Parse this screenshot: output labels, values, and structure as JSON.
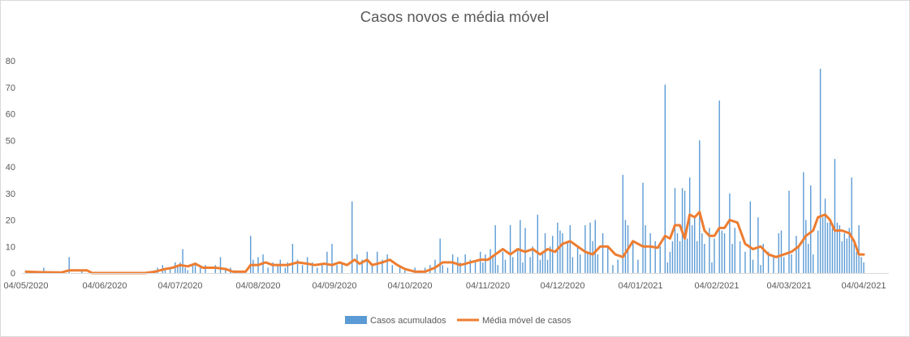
{
  "chart_data": {
    "type": "bar+line",
    "title": "Casos novos e média móvel",
    "xlabel": "",
    "ylabel": "",
    "ylim": [
      0,
      80
    ],
    "yticks": [
      0,
      10,
      20,
      30,
      40,
      50,
      60,
      70,
      80
    ],
    "grid": false,
    "legend_position": "bottom",
    "x_start_date": "2020-05-04",
    "x_end_date": "2021-04-04",
    "x_tick_labels": [
      "04/05/2020",
      "04/06/2020",
      "04/07/2020",
      "04/08/2020",
      "04/09/2020",
      "04/10/2020",
      "04/11/2020",
      "04/12/2020",
      "04/01/2021",
      "04/02/2021",
      "04/03/2021",
      "04/04/2021"
    ],
    "series": [
      {
        "name": "Casos acumulados",
        "kind": "bar",
        "color": "#5b9bd5",
        "values": [
          1,
          0,
          0,
          0,
          0,
          0,
          0,
          0,
          0,
          0,
          0,
          0,
          0,
          0,
          0,
          0,
          0,
          0,
          0,
          0,
          0,
          0,
          2,
          0,
          0,
          0,
          0,
          0,
          0,
          0,
          0,
          0,
          0,
          0,
          0,
          0,
          0,
          0,
          0,
          0,
          0,
          0,
          0,
          0,
          0,
          0,
          0,
          0,
          0,
          0,
          0,
          0,
          0,
          0,
          0,
          0,
          0,
          0,
          0,
          0,
          0,
          0,
          0,
          0,
          0,
          0,
          0,
          0,
          0,
          0,
          0,
          0,
          0,
          0,
          0,
          0,
          0,
          0,
          0,
          0,
          0,
          0,
          0,
          0,
          0,
          0,
          0,
          0,
          0,
          0,
          0,
          0,
          0,
          0,
          0,
          0,
          0,
          0,
          0,
          0,
          0,
          0,
          0,
          0,
          0,
          0,
          0,
          0,
          0,
          0,
          0,
          0,
          0,
          0,
          0,
          0,
          0,
          0,
          0,
          0,
          0,
          0,
          0,
          0,
          0,
          0,
          0,
          0,
          0,
          0,
          0,
          0,
          0,
          0,
          0,
          0,
          0,
          0,
          0,
          0,
          0,
          0,
          0,
          0,
          0,
          0,
          0,
          0,
          0,
          0,
          0,
          0,
          0,
          0,
          0,
          0,
          0,
          0,
          0,
          0,
          0,
          0,
          0,
          0,
          0,
          0,
          0,
          0,
          0,
          0,
          0,
          0,
          0,
          0,
          0,
          0,
          0,
          0,
          0,
          0,
          0,
          0,
          0,
          0,
          0,
          0,
          0,
          0,
          0,
          0,
          0,
          0,
          0,
          0,
          0,
          0,
          0,
          0,
          0,
          0,
          0,
          0,
          0,
          0,
          0,
          0,
          0,
          0,
          0,
          0,
          0,
          0,
          0,
          0,
          0,
          0,
          0,
          0,
          0,
          0,
          0,
          0,
          0,
          0,
          0,
          0,
          0,
          0,
          0,
          0,
          0,
          0,
          0,
          0,
          0,
          0,
          0,
          0,
          0,
          0,
          0,
          0,
          0,
          0,
          0,
          0,
          0,
          0,
          0,
          0,
          0,
          0,
          0,
          0,
          0,
          0,
          0,
          0,
          0,
          0,
          0,
          0,
          0,
          0,
          0,
          0,
          0,
          0,
          0,
          0,
          0,
          0,
          0,
          0,
          0,
          0,
          0,
          0,
          0,
          0,
          0,
          0,
          0,
          0,
          0,
          0,
          0,
          0,
          0,
          0,
          0,
          0,
          0,
          0,
          0,
          0,
          0,
          0,
          0,
          0,
          0,
          0,
          0,
          0,
          0,
          0,
          0,
          0,
          0,
          0,
          0,
          0,
          0,
          0,
          0,
          0,
          0,
          0,
          0,
          0,
          0,
          0,
          0,
          0,
          0,
          0,
          0,
          0,
          0,
          0,
          0,
          0,
          0,
          0,
          0,
          0,
          0,
          0,
          0,
          0,
          0,
          0,
          0,
          0,
          0,
          0,
          0,
          0,
          0,
          0,
          0,
          0,
          0,
          0,
          0,
          0,
          0,
          0,
          0,
          0,
          0,
          0,
          0,
          0,
          0,
          0,
          0,
          0,
          0,
          0,
          0,
          0,
          0,
          0,
          0,
          0,
          0,
          0,
          0,
          0,
          0
        ]
      },
      {
        "name": "Média móvel de casos",
        "kind": "line",
        "color": "#ed7d31",
        "values": []
      }
    ]
  },
  "legend": {
    "bar_label": "Casos acumulados",
    "line_label": "Média móvel de casos"
  }
}
